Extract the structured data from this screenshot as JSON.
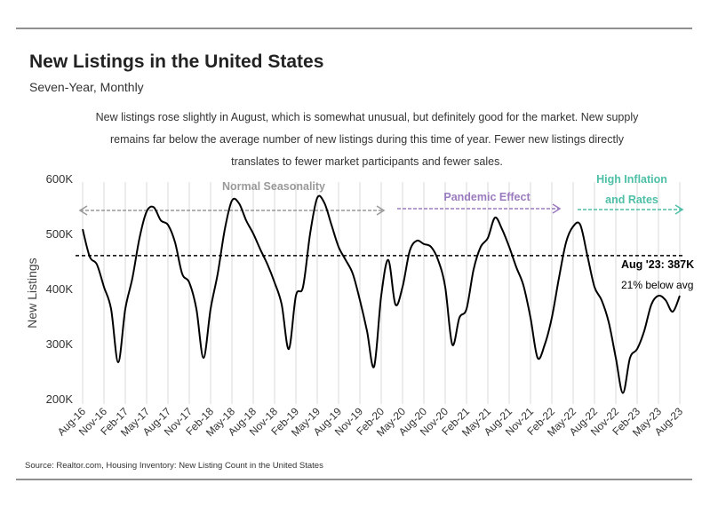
{
  "chart_data": {
    "type": "line",
    "title": "New Listings in the United States",
    "subtitle": "Seven-Year, Monthly",
    "description": [
      "New listings rose slightly in August, which is somewhat unusual, but definitely good for the market. New supply",
      "remains far below the average number of new listings during this time of year. Fewer new listings directly",
      "translates to fewer market participants and fewer sales."
    ],
    "ylabel": "New Listings",
    "source": "Source:  Realtor.com, Housing Inventory: New Listing Count in the United States",
    "categories": [
      "Aug-16",
      null,
      null,
      "Nov-16",
      null,
      null,
      "Feb-17",
      null,
      null,
      "May-17",
      null,
      null,
      "Aug-17",
      null,
      null,
      "Nov-17",
      null,
      null,
      "Feb-18",
      null,
      null,
      "May-18",
      null,
      null,
      "Aug-18",
      null,
      null,
      "Nov-18",
      null,
      null,
      "Feb-19",
      null,
      null,
      "May-19",
      null,
      null,
      "Aug-19",
      null,
      null,
      "Nov-19",
      null,
      null,
      "Feb-20",
      null,
      null,
      "May-20",
      null,
      null,
      "Aug-20",
      null,
      null,
      "Nov-20",
      null,
      null,
      "Feb-21",
      null,
      null,
      "May-21",
      null,
      null,
      "Aug-21",
      null,
      null,
      "Nov-21",
      null,
      null,
      "Feb-22",
      null,
      null,
      "May-22",
      null,
      null,
      "Aug-22",
      null,
      null,
      "Nov-22",
      null,
      null,
      "Feb-23",
      null,
      null,
      "May-23",
      null,
      null,
      "Aug-23"
    ],
    "values": [
      508000,
      458000,
      444000,
      403000,
      363000,
      266000,
      363000,
      419000,
      492000,
      540000,
      548000,
      524000,
      516000,
      484000,
      427000,
      411000,
      363000,
      274000,
      363000,
      427000,
      508000,
      560000,
      555000,
      524000,
      500000,
      471000,
      444000,
      411000,
      371000,
      290000,
      387000,
      403000,
      500000,
      565000,
      556000,
      516000,
      476000,
      452000,
      427000,
      379000,
      323000,
      258000,
      387000,
      452000,
      371000,
      403000,
      468000,
      487000,
      481000,
      476000,
      452000,
      403000,
      298000,
      347000,
      363000,
      435000,
      476000,
      492000,
      529000,
      508000,
      476000,
      439000,
      406000,
      347000,
      274000,
      298000,
      347000,
      419000,
      484000,
      513000,
      516000,
      460000,
      403000,
      379000,
      339000,
      274000,
      210000,
      274000,
      290000,
      323000,
      371000,
      387000,
      379000,
      358000,
      387000
    ],
    "color": "#000000",
    "average": 460000,
    "ylim": [
      190000,
      610000
    ],
    "yticks": [
      {
        "value": 200000,
        "label": "200K"
      },
      {
        "value": 300000,
        "label": "300K"
      },
      {
        "value": 400000,
        "label": "400K"
      },
      {
        "value": 500000,
        "label": "500K"
      },
      {
        "value": 600000,
        "label": "600K"
      }
    ],
    "grid": true,
    "annotations": [
      {
        "text": [
          "Normal Seasonality"
        ],
        "color": "#999999"
      },
      {
        "text": [
          "Pandemic Effect"
        ],
        "color": "#9b7bbf"
      },
      {
        "text": [
          "High Inflation",
          "and Rates"
        ],
        "color": "#4dbfa6"
      }
    ],
    "callout": [
      "Aug '23: 387K",
      "21% below avg"
    ]
  }
}
